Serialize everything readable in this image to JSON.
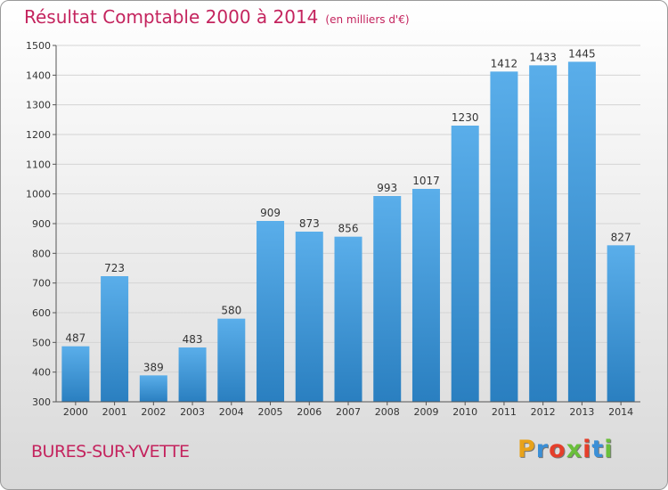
{
  "header": {
    "title": "Résultat Comptable 2000 à 2014",
    "subtitle": "(en milliers d'€)"
  },
  "footer": {
    "city": "BURES-SUR-YVETTE",
    "logo_letters": [
      "P",
      "r",
      "o",
      "x",
      "i",
      "t",
      "i"
    ],
    "logo_colors": [
      "#e8a21a",
      "#3b8fd6",
      "#e53f2b",
      "#6abf3b",
      "#e53f2b",
      "#3b8fd6",
      "#6abf3b"
    ]
  },
  "chart_data": {
    "type": "bar",
    "title": "Résultat Comptable 2000 à 2014",
    "categories": [
      "2000",
      "2001",
      "2002",
      "2003",
      "2004",
      "2005",
      "2006",
      "2007",
      "2008",
      "2009",
      "2010",
      "2011",
      "2012",
      "2013",
      "2014"
    ],
    "values": [
      487,
      723,
      389,
      483,
      580,
      909,
      873,
      856,
      993,
      1017,
      1230,
      1412,
      1433,
      1445,
      827
    ],
    "ylim": [
      300,
      1500
    ],
    "yticks": [
      300,
      400,
      500,
      600,
      700,
      800,
      900,
      1000,
      1100,
      1200,
      1300,
      1400,
      1500
    ],
    "grid": true,
    "bar_color": "#4ea3e6"
  }
}
